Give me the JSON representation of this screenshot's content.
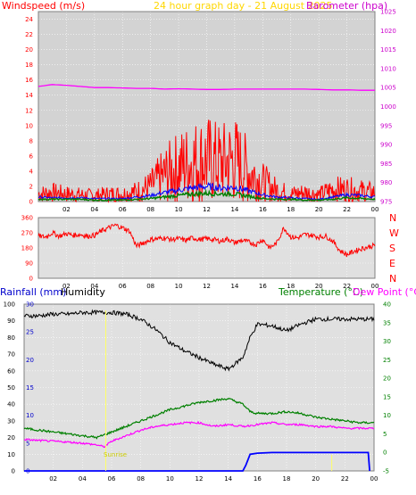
{
  "chart_data": [
    {
      "id": "top",
      "type": "line",
      "title": "24 hour graph day - 21 August 2025",
      "left_label": "Windspeed (m/s)",
      "right_label": "Barometer (hpa)",
      "left_ticks": [
        "0",
        "2",
        "4",
        "6",
        "8",
        "10",
        "12",
        "14",
        "16",
        "18",
        "20",
        "22",
        "24"
      ],
      "right_ticks": [
        "975",
        "980",
        "985",
        "990",
        "995",
        "1000",
        "1005",
        "1010",
        "1015",
        "1020",
        "1025"
      ],
      "ylim_left": [
        0,
        25
      ],
      "ylim_right": [
        975,
        1025
      ],
      "x_ticks": [
        "02",
        "04",
        "06",
        "08",
        "10",
        "12",
        "14",
        "16",
        "18",
        "20",
        "22",
        "00"
      ],
      "series": [
        {
          "key": "barometer",
          "color": "#ff00ff",
          "axis": "right",
          "x": [
            0,
            1,
            2,
            3,
            4,
            5,
            6,
            7,
            8,
            9,
            10,
            11,
            12,
            13,
            14,
            15,
            16,
            17,
            18,
            19,
            20,
            21,
            22,
            23,
            24
          ],
          "values": [
            1005.3,
            1005.8,
            1005.6,
            1005.3,
            1005.0,
            1005.0,
            1004.9,
            1004.8,
            1004.8,
            1004.6,
            1004.7,
            1004.6,
            1004.5,
            1004.5,
            1004.6,
            1004.6,
            1004.6,
            1004.6,
            1004.6,
            1004.6,
            1004.5,
            1004.4,
            1004.4,
            1004.3,
            1004.3
          ]
        },
        {
          "key": "gust",
          "color": "#ff0000",
          "axis": "left",
          "x": [
            0,
            1,
            2,
            3,
            4,
            5,
            6,
            7,
            8,
            9,
            10,
            11,
            12,
            13,
            14,
            15,
            16,
            17,
            18,
            19,
            20,
            21,
            22,
            23,
            24
          ],
          "values": [
            1.0,
            1.2,
            1.0,
            0.9,
            0.8,
            1.0,
            1.0,
            1.3,
            2.0,
            3.5,
            4.5,
            5.2,
            5.5,
            5.0,
            5.5,
            4.0,
            2.5,
            1.5,
            1.0,
            1.2,
            0.9,
            1.6,
            1.6,
            1.4,
            1.2
          ]
        },
        {
          "key": "average",
          "color": "#0000ff",
          "axis": "left",
          "x": [
            0,
            1,
            2,
            3,
            4,
            5,
            6,
            7,
            8,
            9,
            10,
            11,
            12,
            13,
            14,
            15,
            16,
            17,
            18,
            19,
            20,
            21,
            22,
            23,
            24
          ],
          "values": [
            0.6,
            0.5,
            0.5,
            0.5,
            0.4,
            0.4,
            0.4,
            0.6,
            0.8,
            1.2,
            1.5,
            1.8,
            2.0,
            1.8,
            1.9,
            1.4,
            0.9,
            0.6,
            0.5,
            0.4,
            0.3,
            0.6,
            0.9,
            0.8,
            0.6
          ]
        },
        {
          "key": "low",
          "color": "#008000",
          "axis": "left",
          "x": [
            0,
            1,
            2,
            3,
            4,
            5,
            6,
            7,
            8,
            9,
            10,
            11,
            12,
            13,
            14,
            15,
            16,
            17,
            18,
            19,
            20,
            21,
            22,
            23,
            24
          ],
          "values": [
            0.3,
            0.3,
            0.3,
            0.3,
            0.2,
            0.2,
            0.2,
            0.3,
            0.4,
            0.6,
            0.8,
            1.0,
            1.1,
            1.0,
            1.0,
            0.7,
            0.4,
            0.3,
            0.3,
            0.2,
            0.2,
            0.3,
            0.5,
            0.4,
            0.3
          ]
        }
      ]
    },
    {
      "id": "direction",
      "type": "line",
      "left_ticks": [
        "0",
        "90",
        "180",
        "270",
        "360"
      ],
      "ylim": [
        0,
        360
      ],
      "right_labels": [
        "N",
        "W",
        "S",
        "E",
        "N"
      ],
      "x_ticks": [
        "02",
        "04",
        "06",
        "08",
        "10",
        "12",
        "14",
        "16",
        "18",
        "20",
        "22",
        "00"
      ],
      "series": [
        {
          "key": "wind_direction",
          "color": "#ff0000",
          "x": [
            0,
            0.5,
            1,
            1.5,
            2,
            2.5,
            3,
            3.5,
            4,
            4.5,
            5,
            5.5,
            6,
            6.5,
            7,
            7.5,
            8,
            8.5,
            9,
            9.5,
            10,
            10.5,
            11,
            11.5,
            12,
            12.5,
            13,
            13.5,
            14,
            14.5,
            15,
            15.5,
            16,
            16.5,
            17,
            17.5,
            18,
            18.5,
            19,
            19.5,
            20,
            20.5,
            21,
            21.5,
            22,
            22.5,
            23,
            23.5,
            24
          ],
          "values": [
            250,
            245,
            270,
            250,
            265,
            255,
            260,
            250,
            255,
            280,
            300,
            315,
            300,
            280,
            190,
            210,
            230,
            235,
            240,
            230,
            235,
            225,
            240,
            230,
            235,
            230,
            220,
            235,
            210,
            225,
            215,
            200,
            230,
            180,
            210,
            300,
            245,
            240,
            260,
            255,
            245,
            250,
            220,
            165,
            140,
            160,
            175,
            185,
            195
          ]
        }
      ]
    },
    {
      "id": "bottom",
      "type": "line",
      "left_labels": [
        "Rainfall (mm)",
        "Humidity"
      ],
      "right_labels": [
        "Temperature (°C)",
        "Dew Point (°C)"
      ],
      "left_ticks_humidity": [
        "0",
        "10",
        "20",
        "30",
        "40",
        "50",
        "60",
        "70",
        "80",
        "90",
        "100"
      ],
      "left_ticks_rain": [
        "0",
        "5",
        "10",
        "15",
        "20",
        "25",
        "30"
      ],
      "right_ticks": [
        "-5",
        "0",
        "5",
        "10",
        "15",
        "20",
        "25",
        "30",
        "35",
        "40"
      ],
      "ylim_humidity": [
        0,
        100
      ],
      "ylim_rain": [
        0,
        30
      ],
      "ylim_temp": [
        -5,
        40
      ],
      "annotations": [
        "Sunrise"
      ],
      "x_ticks": [
        "02",
        "04",
        "06",
        "08",
        "10",
        "12",
        "14",
        "16",
        "18",
        "20",
        "22",
        "00"
      ],
      "series": [
        {
          "key": "humidity",
          "color": "#000000",
          "axis": "humidity",
          "x": [
            0,
            1,
            2,
            3,
            4,
            5,
            6,
            7,
            8,
            9,
            10,
            11,
            12,
            13,
            14,
            15,
            15.5,
            16,
            17,
            18,
            19,
            20,
            21,
            22,
            23,
            24
          ],
          "values": [
            93,
            93,
            94,
            94,
            95,
            95,
            95,
            94,
            91,
            85,
            77,
            72,
            68,
            64,
            61,
            68,
            80,
            88,
            87,
            84,
            88,
            91,
            91,
            91,
            91,
            91
          ],
          "hi_band": 2
        },
        {
          "key": "temperature",
          "color": "#008000",
          "axis": "temp",
          "x": [
            0,
            1,
            2,
            3,
            4,
            5,
            6,
            7,
            8,
            9,
            10,
            11,
            12,
            13,
            14,
            15,
            15.5,
            16,
            17,
            18,
            19,
            20,
            21,
            22,
            23,
            24
          ],
          "values": [
            6.5,
            6.0,
            5.5,
            5.0,
            4.5,
            4.0,
            5.5,
            7.0,
            8.5,
            10.0,
            11.5,
            12.5,
            13.5,
            14.0,
            14.5,
            13.0,
            11.0,
            10.5,
            10.5,
            11.0,
            10.5,
            9.5,
            9.0,
            8.5,
            8.0,
            8.0
          ]
        },
        {
          "key": "dewpoint",
          "color": "#ff00ff",
          "axis": "temp",
          "x": [
            0,
            1,
            2,
            3,
            4,
            5,
            5.5,
            6,
            7,
            8,
            9,
            10,
            11,
            12,
            13,
            14,
            15,
            16,
            17,
            18,
            19,
            20,
            21,
            22,
            23,
            24
          ],
          "values": [
            3.5,
            3.2,
            3.0,
            2.8,
            2.5,
            2.0,
            1.5,
            3.0,
            4.5,
            6.0,
            7.0,
            7.5,
            8.0,
            8.0,
            7.0,
            7.5,
            7.0,
            7.5,
            8.0,
            7.5,
            7.5,
            7.0,
            7.0,
            6.5,
            6.5,
            6.5
          ]
        },
        {
          "key": "rainfall",
          "color": "#0000ff",
          "axis": "rain",
          "x": [
            0,
            15.0,
            15.2,
            15.5,
            16,
            17,
            18,
            19,
            20,
            21,
            22,
            23,
            23.6,
            23.7
          ],
          "values": [
            0,
            0,
            1,
            3,
            3.2,
            3.3,
            3.3,
            3.3,
            3.3,
            3.3,
            3.3,
            3.3,
            3.3,
            0
          ]
        }
      ]
    }
  ]
}
